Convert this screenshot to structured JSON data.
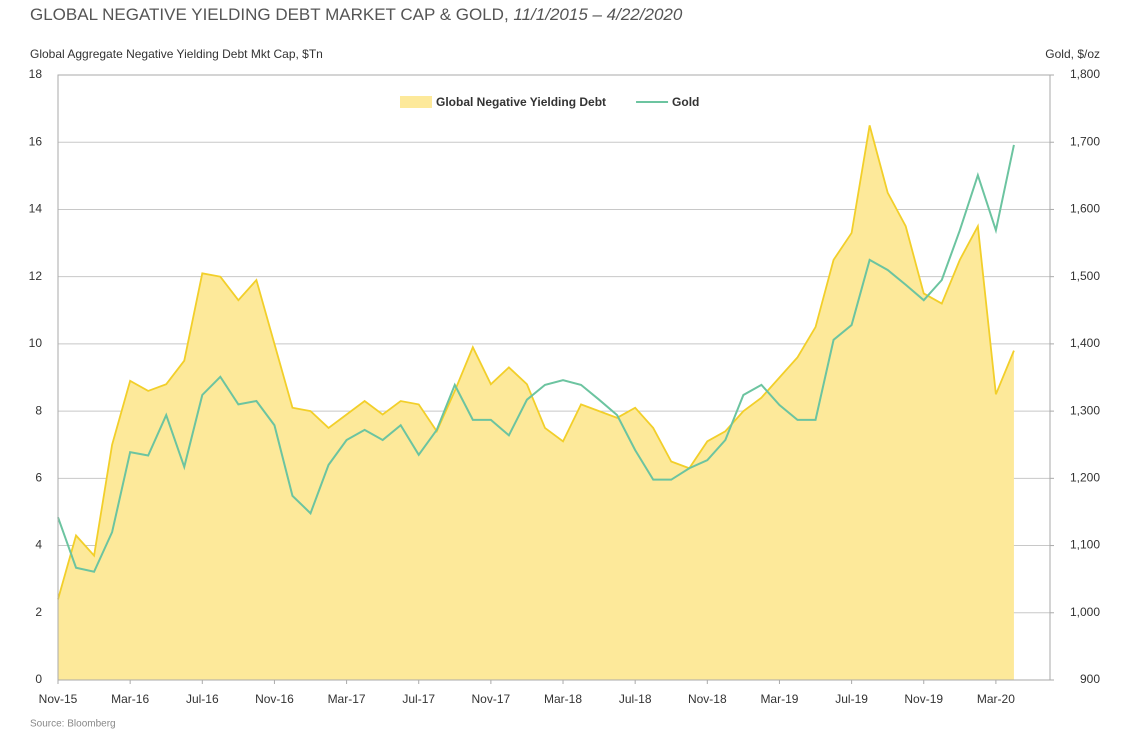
{
  "chart_data": {
    "type": "area-line",
    "title": "GLOBAL NEGATIVE YIELDING DEBT MARKET CAP & GOLD,",
    "subtitle": "11/1/2015 – 4/22/2020",
    "ylabel": "Global Aggregate Negative Yielding Debt Mkt Cap, $Tn",
    "y2label": "Gold, $/oz",
    "source": "Source: Bloomberg",
    "x": [
      "2015-11",
      "2015-12",
      "2016-01",
      "2016-02",
      "2016-03",
      "2016-04",
      "2016-05",
      "2016-06",
      "2016-07",
      "2016-08",
      "2016-09",
      "2016-10",
      "2016-11",
      "2016-12",
      "2017-01",
      "2017-02",
      "2017-03",
      "2017-04",
      "2017-05",
      "2017-06",
      "2017-07",
      "2017-08",
      "2017-09",
      "2017-10",
      "2017-11",
      "2017-12",
      "2018-01",
      "2018-02",
      "2018-03",
      "2018-04",
      "2018-05",
      "2018-06",
      "2018-07",
      "2018-08",
      "2018-09",
      "2018-10",
      "2018-11",
      "2018-12",
      "2019-01",
      "2019-02",
      "2019-03",
      "2019-04",
      "2019-05",
      "2019-06",
      "2019-07",
      "2019-08",
      "2019-09",
      "2019-10",
      "2019-11",
      "2019-12",
      "2020-01",
      "2020-02",
      "2020-03",
      "2020-04"
    ],
    "xlim": [
      "2015-11",
      "2020-06"
    ],
    "xticks": [
      {
        "value": "2015-11",
        "label": "Nov-15"
      },
      {
        "value": "2016-03",
        "label": "Mar-16"
      },
      {
        "value": "2016-07",
        "label": "Jul-16"
      },
      {
        "value": "2016-11",
        "label": "Nov-16"
      },
      {
        "value": "2017-03",
        "label": "Mar-17"
      },
      {
        "value": "2017-07",
        "label": "Jul-17"
      },
      {
        "value": "2017-11",
        "label": "Nov-17"
      },
      {
        "value": "2018-03",
        "label": "Mar-18"
      },
      {
        "value": "2018-07",
        "label": "Jul-18"
      },
      {
        "value": "2018-11",
        "label": "Nov-18"
      },
      {
        "value": "2019-03",
        "label": "Mar-19"
      },
      {
        "value": "2019-07",
        "label": "Jul-19"
      },
      {
        "value": "2019-11",
        "label": "Nov-19"
      },
      {
        "value": "2020-03",
        "label": "Mar-20"
      }
    ],
    "ylim": [
      0,
      18
    ],
    "yticks": [
      0,
      2,
      4,
      6,
      8,
      10,
      12,
      14,
      16,
      18
    ],
    "y2lim": [
      900,
      1800
    ],
    "y2ticks": [
      900,
      {
        "value": 1000,
        "label": "1,000"
      },
      {
        "value": 1100,
        "label": "1,100"
      },
      {
        "value": 1200,
        "label": "1,200"
      },
      {
        "value": 1300,
        "label": "1,300"
      },
      {
        "value": 1400,
        "label": "1,400"
      },
      {
        "value": 1500,
        "label": "1,500"
      },
      {
        "value": 1600,
        "label": "1,600"
      },
      {
        "value": 1700,
        "label": "1,700"
      },
      {
        "value": 1800,
        "label": "1,800"
      }
    ],
    "grid": true,
    "legend": "top",
    "series": [
      {
        "name": "Global Negative Yielding Debt",
        "kind": "area",
        "color": "#f2cf2a",
        "fill": "#fde99a",
        "values": [
          2.4,
          4.3,
          3.7,
          7.0,
          8.9,
          8.6,
          8.8,
          9.5,
          12.1,
          12.0,
          11.3,
          11.9,
          10.0,
          8.1,
          8.0,
          7.5,
          7.9,
          8.3,
          7.9,
          8.3,
          8.2,
          7.4,
          8.6,
          9.9,
          8.8,
          9.3,
          8.8,
          7.5,
          7.1,
          8.2,
          8.0,
          7.8,
          8.1,
          7.5,
          6.5,
          6.3,
          7.1,
          7.4,
          8.0,
          8.4,
          9.0,
          9.6,
          10.5,
          12.5,
          13.3,
          16.5,
          14.5,
          13.5,
          11.5,
          11.2,
          12.5,
          13.5,
          8.5,
          9.8
        ]
      },
      {
        "name": "Gold",
        "kind": "line",
        "axis": "y2",
        "color": "#6cc4a0",
        "values": [
          1142,
          1067,
          1061,
          1120,
          1239,
          1234,
          1294,
          1217,
          1324,
          1351,
          1310,
          1315,
          1279,
          1174,
          1148,
          1220,
          1257,
          1272,
          1257,
          1279,
          1235,
          1272,
          1339,
          1287,
          1287,
          1264,
          1317,
          1339,
          1346,
          1339,
          1317,
          1294,
          1242,
          1198,
          1198,
          1215,
          1227,
          1257,
          1324,
          1339,
          1309,
          1287,
          1287,
          1406,
          1428,
          1525,
          1510,
          1488,
          1465,
          1495,
          1569,
          1651,
          1569,
          1696
        ]
      }
    ]
  }
}
